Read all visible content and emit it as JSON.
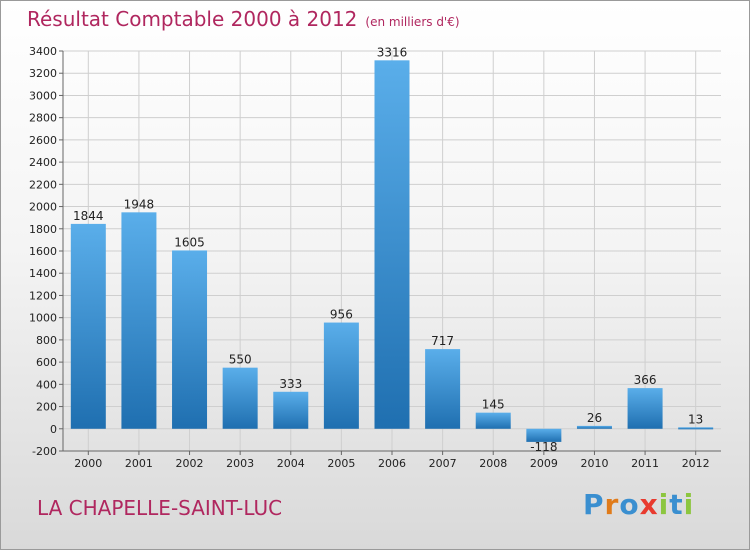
{
  "header": {
    "title": "Résultat Comptable 2000 à 2012",
    "unit": "(en milliers d'€)"
  },
  "commune": "LA CHAPELLE-SAINT-LUC",
  "logo": {
    "text": "Proxiti",
    "letter_colors": [
      "#3a8fd0",
      "#e07b1a",
      "#3a8fd0",
      "#e83a2e",
      "#8cc63f",
      "#3a8fd0",
      "#8cc63f"
    ]
  },
  "colors": {
    "title": "#b0275f",
    "bar_top": "#5aaeea",
    "bar_bottom": "#1f6fb0",
    "grid": "#cfcfcf"
  },
  "chart_data": {
    "type": "bar",
    "title": "Résultat Comptable 2000 à 2012",
    "subtitle": "(en milliers d'€)",
    "xlabel": "",
    "ylabel": "",
    "categories": [
      "2000",
      "2001",
      "2002",
      "2003",
      "2004",
      "2005",
      "2006",
      "2007",
      "2008",
      "2009",
      "2010",
      "2011",
      "2012"
    ],
    "values": [
      1844,
      1948,
      1605,
      550,
      333,
      956,
      3316,
      717,
      145,
      -118,
      26,
      366,
      13
    ],
    "data_labels": [
      "1844",
      "1948",
      "1605",
      "550",
      "333",
      "956",
      "3316",
      "717",
      "145",
      "-118",
      "26",
      "366",
      "13"
    ],
    "ylim": [
      -200,
      3400
    ],
    "yticks": [
      -200,
      0,
      200,
      400,
      600,
      800,
      1000,
      1200,
      1400,
      1600,
      1800,
      2000,
      2200,
      2400,
      2600,
      2800,
      3000,
      3200,
      3400
    ],
    "grid": true,
    "legend": "none"
  }
}
